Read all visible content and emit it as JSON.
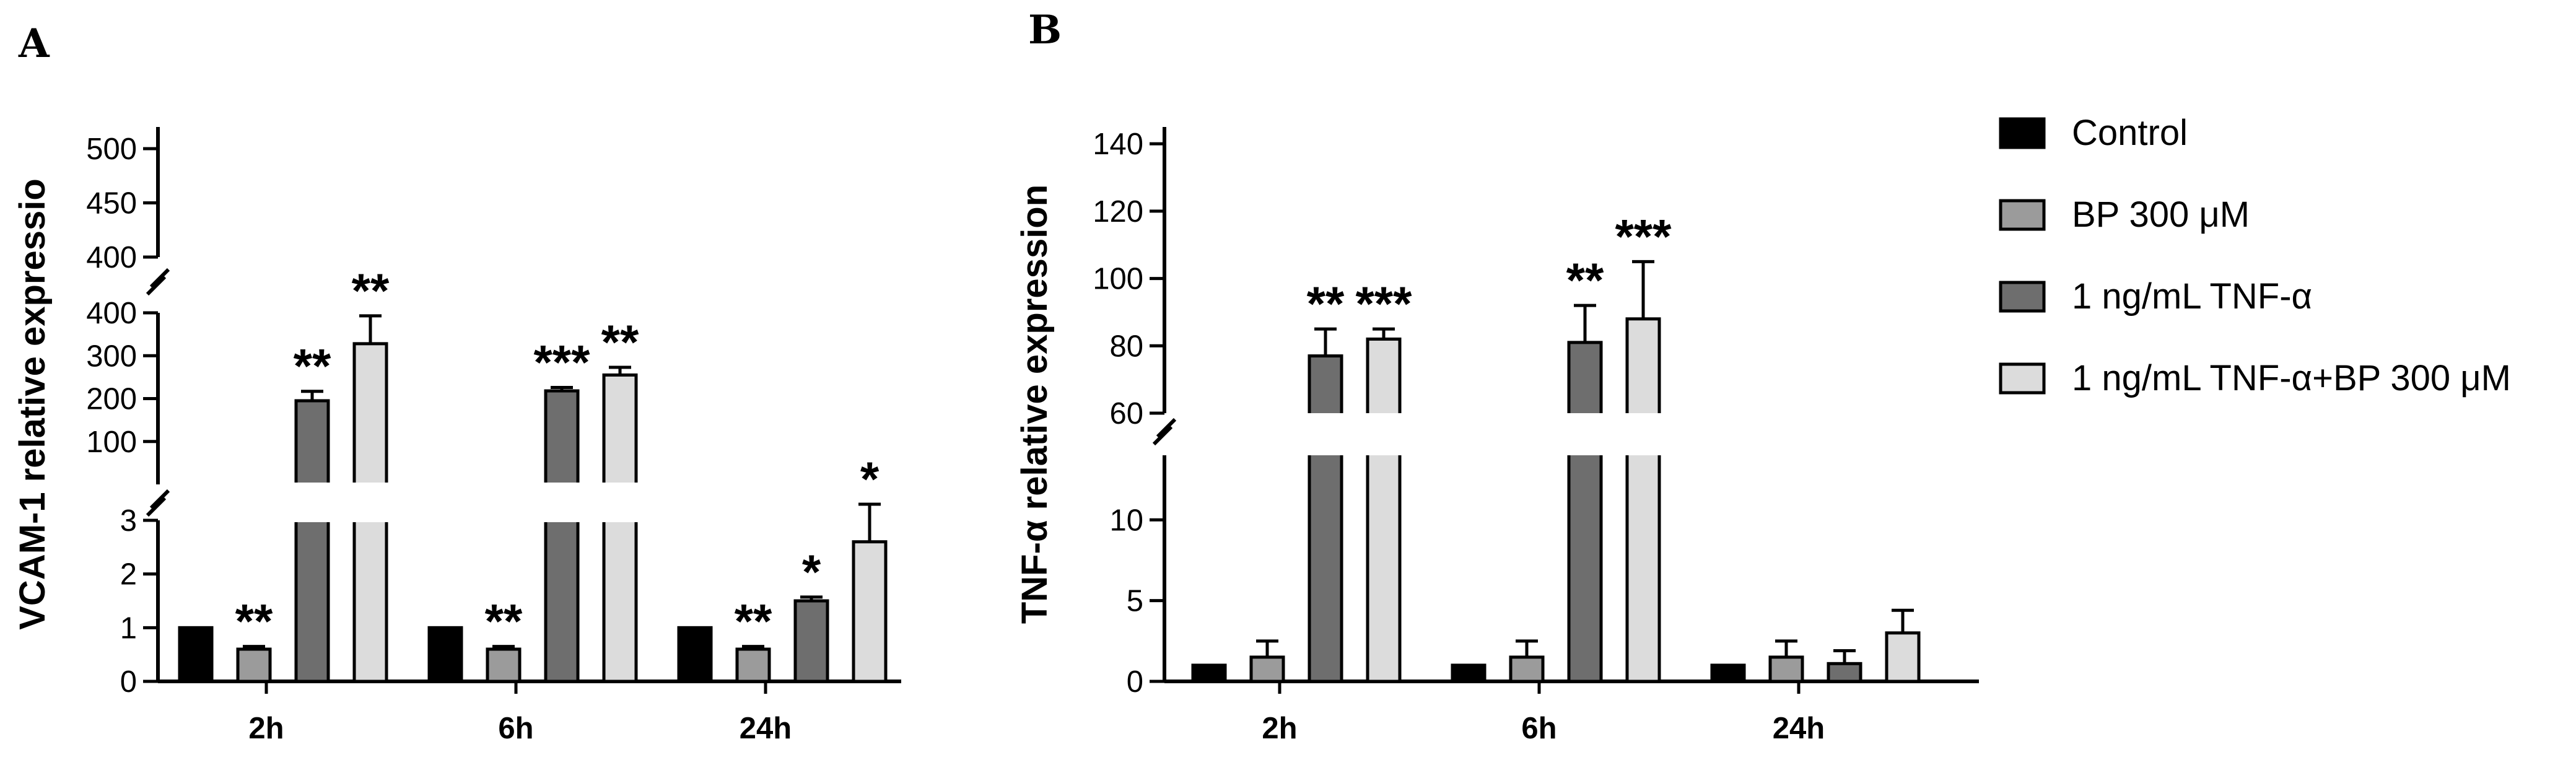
{
  "panels": {
    "a_label": "A",
    "b_label": "B"
  },
  "legend": {
    "items": [
      {
        "label": "Control",
        "color": "#000000"
      },
      {
        "label": "BP 300 μM",
        "color": "#9b9b9b"
      },
      {
        "label": "1 ng/mL TNF-α",
        "color": "#6e6e6e"
      },
      {
        "label": "1 ng/mL TNF-α+BP 300 μM",
        "color": "#dcdcdc"
      }
    ]
  },
  "chart_data": [
    {
      "type": "bar",
      "panel": "A",
      "title": "",
      "xlabel": "",
      "ylabel": "VCAM-1 relative expressio",
      "categories": [
        "2h",
        "6h",
        "24h"
      ],
      "y_axis_segments": [
        {
          "range": [
            0,
            3
          ],
          "ticks": [
            0,
            1,
            2,
            3
          ]
        },
        {
          "range": [
            0,
            400
          ],
          "ticks": [
            100,
            200,
            300,
            400
          ]
        },
        {
          "range": [
            400,
            520
          ],
          "ticks": [
            400,
            450,
            500
          ]
        }
      ],
      "series": [
        {
          "name": "Control",
          "values": [
            1,
            1,
            1
          ],
          "errors": [
            0,
            0,
            0
          ],
          "significance": [
            "",
            "",
            ""
          ]
        },
        {
          "name": "BP 300 μM",
          "values": [
            0.6,
            0.6,
            0.6
          ],
          "errors": [
            0.05,
            0.05,
            0.05
          ],
          "significance": [
            "**",
            "**",
            "**"
          ]
        },
        {
          "name": "1 ng/mL TNF-α",
          "values": [
            195,
            218,
            1.5
          ],
          "errors": [
            22,
            8,
            0.07
          ],
          "significance": [
            "**",
            "***",
            "*"
          ]
        },
        {
          "name": "1 ng/mL TNF-α+BP 300 μM",
          "values": [
            328,
            255,
            2.6
          ],
          "errors": [
            65,
            18,
            0.7
          ],
          "significance": [
            "**",
            "**",
            "*"
          ]
        }
      ]
    },
    {
      "type": "bar",
      "panel": "B",
      "title": "",
      "xlabel": "",
      "ylabel": "TNF-α relative expression",
      "categories": [
        "2h",
        "6h",
        "24h"
      ],
      "y_axis_segments": [
        {
          "range": [
            0,
            14
          ],
          "ticks": [
            0,
            5,
            10
          ]
        },
        {
          "range": [
            60,
            145
          ],
          "ticks": [
            60,
            80,
            100,
            120,
            140
          ]
        }
      ],
      "series": [
        {
          "name": "Control",
          "values": [
            1,
            1,
            1
          ],
          "errors": [
            0,
            0,
            0
          ],
          "significance": [
            "",
            "",
            ""
          ]
        },
        {
          "name": "BP 300 μM",
          "values": [
            1.5,
            1.5,
            1.5
          ],
          "errors": [
            1.0,
            1.0,
            1.0
          ],
          "significance": [
            "",
            "",
            ""
          ]
        },
        {
          "name": "1 ng/mL TNF-α",
          "values": [
            77,
            81,
            1.1
          ],
          "errors": [
            8,
            11,
            0.8
          ],
          "significance": [
            "**",
            "**",
            ""
          ]
        },
        {
          "name": "1 ng/mL TNF-α+BP 300 μM",
          "values": [
            82,
            88,
            3.0
          ],
          "errors": [
            3,
            17,
            1.4
          ],
          "significance": [
            "***",
            "***",
            ""
          ]
        }
      ]
    }
  ]
}
